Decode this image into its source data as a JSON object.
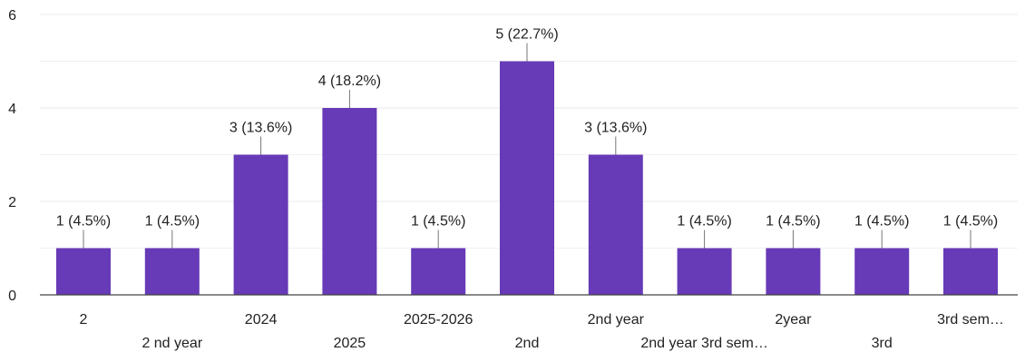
{
  "chart_data": {
    "type": "bar",
    "categories": [
      "2",
      "2 nd year",
      "2024",
      "2025",
      "2025-2026",
      "2nd",
      "2nd year",
      "2nd year 3rd sem…",
      "2year",
      "3rd",
      "3rd sem…"
    ],
    "values": [
      1,
      1,
      3,
      4,
      1,
      5,
      3,
      1,
      1,
      1,
      1
    ],
    "data_labels": [
      "1 (4.5%)",
      "1 (4.5%)",
      "3 (13.6%)",
      "4 (18.2%)",
      "1 (4.5%)",
      "5 (22.7%)",
      "3 (13.6%)",
      "1 (4.5%)",
      "1 (4.5%)",
      "1 (4.5%)",
      "1 (4.5%)"
    ],
    "ylim": [
      0,
      6
    ],
    "yticks": [
      0,
      2,
      4,
      6
    ],
    "grid": true,
    "legend": "none",
    "bar_color": "#673ab7",
    "grid_color": "#e8e8e8",
    "axis_color": "#444444",
    "text_color": "#222222"
  }
}
